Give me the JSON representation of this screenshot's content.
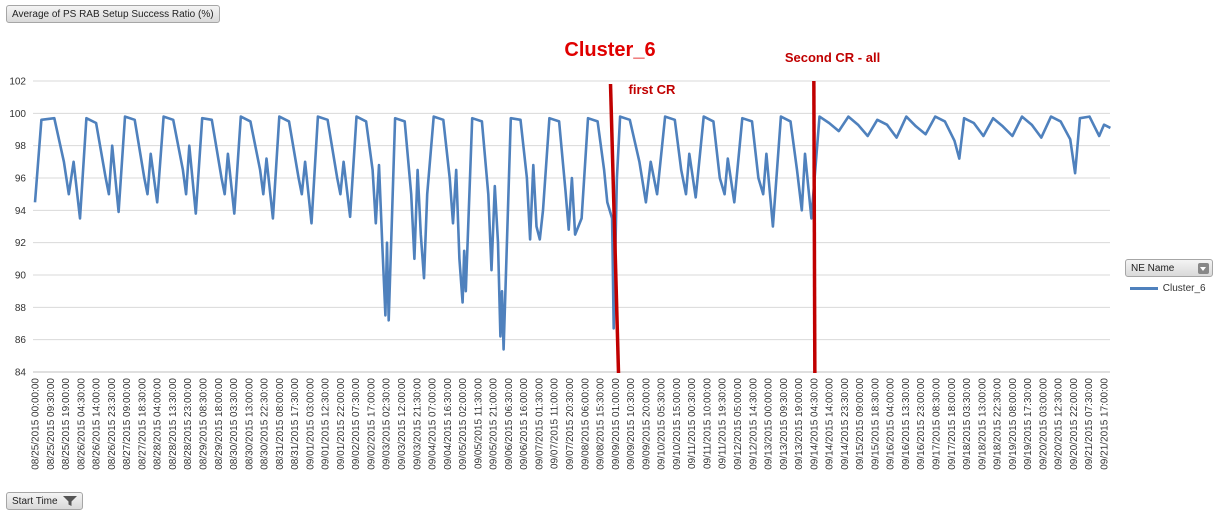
{
  "pivot": {
    "value_field": "Average of PS RAB Setup Success Ratio (%)",
    "axis_field": "Start Time",
    "legend_field": "NE Name"
  },
  "colors": {
    "series": "#4f81bd",
    "marker": "#c00000",
    "grid": "#d9d9d9",
    "title": "#e00000"
  },
  "chart_data": {
    "type": "line",
    "title": "Cluster_6",
    "ylim": [
      84,
      102
    ],
    "yticks": [
      84,
      86,
      88,
      90,
      92,
      94,
      96,
      98,
      100,
      102
    ],
    "grid": true,
    "legend": "right",
    "x_ticks": [
      "08/25/2015 00:00:00",
      "08/25/2015 09:30:00",
      "08/25/2015 19:00:00",
      "08/26/2015 04:30:00",
      "08/26/2015 14:00:00",
      "08/26/2015 23:30:00",
      "08/27/2015 09:00:00",
      "08/27/2015 18:30:00",
      "08/28/2015 04:00:00",
      "08/28/2015 13:30:00",
      "08/28/2015 23:00:00",
      "08/29/2015 08:30:00",
      "08/29/2015 18:00:00",
      "08/30/2015 03:30:00",
      "08/30/2015 13:00:00",
      "08/30/2015 22:30:00",
      "08/31/2015 08:00:00",
      "08/31/2015 17:30:00",
      "09/01/2015 03:00:00",
      "09/01/2015 12:30:00",
      "09/01/2015 22:00:00",
      "09/02/2015 07:30:00",
      "09/02/2015 17:00:00",
      "09/03/2015 02:30:00",
      "09/03/2015 12:00:00",
      "09/03/2015 21:30:00",
      "09/04/2015 07:00:00",
      "09/04/2015 16:30:00",
      "09/05/2015 02:00:00",
      "09/05/2015 11:30:00",
      "09/05/2015 21:00:00",
      "09/06/2015 06:30:00",
      "09/06/2015 16:00:00",
      "09/07/2015 01:30:00",
      "09/07/2015 11:00:00",
      "09/07/2015 20:30:00",
      "09/08/2015 06:00:00",
      "09/08/2015 15:30:00",
      "09/09/2015 01:00:00",
      "09/09/2015 10:30:00",
      "09/09/2015 20:00:00",
      "09/10/2015 05:30:00",
      "09/10/2015 15:00:00",
      "09/11/2015 00:30:00",
      "09/11/2015 10:00:00",
      "09/11/2015 19:30:00",
      "09/12/2015 05:00:00",
      "09/12/2015 14:30:00",
      "09/13/2015 00:00:00",
      "09/13/2015 09:30:00",
      "09/13/2015 19:00:00",
      "09/14/2015 04:30:00",
      "09/14/2015 14:00:00",
      "09/14/2015 23:30:00",
      "09/15/2015 09:00:00",
      "09/15/2015 18:30:00",
      "09/16/2015 04:00:00",
      "09/16/2015 13:30:00",
      "09/16/2015 23:00:00",
      "09/17/2015 08:30:00",
      "09/17/2015 18:00:00",
      "09/18/2015 03:30:00",
      "09/18/2015 13:00:00",
      "09/18/2015 22:30:00",
      "09/19/2015 08:00:00",
      "09/19/2015 17:30:00",
      "09/20/2015 03:00:00",
      "09/20/2015 12:30:00",
      "09/20/2015 22:00:00",
      "09/21/2015 07:30:00",
      "09/21/2015 17:00:00"
    ],
    "series": [
      {
        "name": "Cluster_6",
        "points": [
          [
            "08/25/2015 00:00:00",
            94.5
          ],
          [
            "08/25/2015 04:00:00",
            99.6
          ],
          [
            "08/25/2015 12:00:00",
            99.7
          ],
          [
            "08/25/2015 18:00:00",
            97
          ],
          [
            "08/25/2015 21:00:00",
            95
          ],
          [
            "08/26/2015 00:00:00",
            97
          ],
          [
            "08/26/2015 04:00:00",
            93.5
          ],
          [
            "08/26/2015 08:00:00",
            99.7
          ],
          [
            "08/26/2015 14:00:00",
            99.4
          ],
          [
            "08/26/2015 20:00:00",
            96
          ],
          [
            "08/26/2015 22:00:00",
            95
          ],
          [
            "08/27/2015 00:00:00",
            98
          ],
          [
            "08/27/2015 04:00:00",
            93.9
          ],
          [
            "08/27/2015 08:00:00",
            99.8
          ],
          [
            "08/27/2015 14:00:00",
            99.6
          ],
          [
            "08/27/2015 20:00:00",
            96
          ],
          [
            "08/27/2015 22:00:00",
            95
          ],
          [
            "08/28/2015 00:00:00",
            97.5
          ],
          [
            "08/28/2015 04:00:00",
            94.5
          ],
          [
            "08/28/2015 08:00:00",
            99.8
          ],
          [
            "08/28/2015 14:00:00",
            99.6
          ],
          [
            "08/28/2015 20:00:00",
            96.5
          ],
          [
            "08/28/2015 22:00:00",
            95
          ],
          [
            "08/29/2015 00:00:00",
            98
          ],
          [
            "08/29/2015 04:00:00",
            93.8
          ],
          [
            "08/29/2015 08:00:00",
            99.7
          ],
          [
            "08/29/2015 14:00:00",
            99.6
          ],
          [
            "08/29/2015 20:00:00",
            96
          ],
          [
            "08/29/2015 22:00:00",
            95
          ],
          [
            "08/30/2015 00:00:00",
            97.5
          ],
          [
            "08/30/2015 04:00:00",
            93.8
          ],
          [
            "08/30/2015 08:00:00",
            99.8
          ],
          [
            "08/30/2015 14:00:00",
            99.5
          ],
          [
            "08/30/2015 20:00:00",
            96.5
          ],
          [
            "08/30/2015 22:00:00",
            95
          ],
          [
            "08/31/2015 00:00:00",
            97.2
          ],
          [
            "08/31/2015 04:00:00",
            93.5
          ],
          [
            "08/31/2015 08:00:00",
            99.8
          ],
          [
            "08/31/2015 14:00:00",
            99.5
          ],
          [
            "08/31/2015 20:00:00",
            96
          ],
          [
            "08/31/2015 22:00:00",
            95
          ],
          [
            "09/01/2015 00:00:00",
            97
          ],
          [
            "09/01/2015 04:00:00",
            93.2
          ],
          [
            "09/01/2015 08:00:00",
            99.8
          ],
          [
            "09/01/2015 14:00:00",
            99.6
          ],
          [
            "09/01/2015 20:00:00",
            96
          ],
          [
            "09/01/2015 22:00:00",
            95
          ],
          [
            "09/02/2015 00:00:00",
            97
          ],
          [
            "09/02/2015 04:00:00",
            93.6
          ],
          [
            "09/02/2015 08:00:00",
            99.8
          ],
          [
            "09/02/2015 14:00:00",
            99.5
          ],
          [
            "09/02/2015 18:00:00",
            96.5
          ],
          [
            "09/02/2015 20:00:00",
            93.2
          ],
          [
            "09/02/2015 22:00:00",
            96.8
          ],
          [
            "09/03/2015 00:00:00",
            92
          ],
          [
            "09/03/2015 02:00:00",
            87.5
          ],
          [
            "09/03/2015 03:00:00",
            92
          ],
          [
            "09/03/2015 04:00:00",
            87.2
          ],
          [
            "09/03/2015 08:00:00",
            99.7
          ],
          [
            "09/03/2015 14:00:00",
            99.5
          ],
          [
            "09/03/2015 18:00:00",
            95
          ],
          [
            "09/03/2015 20:00:00",
            91
          ],
          [
            "09/03/2015 22:00:00",
            96.5
          ],
          [
            "09/04/2015 00:00:00",
            92.5
          ],
          [
            "09/04/2015 02:00:00",
            89.8
          ],
          [
            "09/04/2015 04:00:00",
            95
          ],
          [
            "09/04/2015 08:00:00",
            99.8
          ],
          [
            "09/04/2015 14:00:00",
            99.6
          ],
          [
            "09/04/2015 18:00:00",
            96
          ],
          [
            "09/04/2015 20:00:00",
            93.2
          ],
          [
            "09/04/2015 22:00:00",
            96.5
          ],
          [
            "09/05/2015 00:00:00",
            91
          ],
          [
            "09/05/2015 02:00:00",
            88.3
          ],
          [
            "09/05/2015 03:00:00",
            91.5
          ],
          [
            "09/05/2015 04:00:00",
            89
          ],
          [
            "09/05/2015 08:00:00",
            99.7
          ],
          [
            "09/05/2015 14:00:00",
            99.5
          ],
          [
            "09/05/2015 18:00:00",
            95
          ],
          [
            "09/05/2015 20:00:00",
            90.3
          ],
          [
            "09/05/2015 22:00:00",
            95.5
          ],
          [
            "09/06/2015 00:00:00",
            92
          ],
          [
            "09/06/2015 01:30:00",
            86.2
          ],
          [
            "09/06/2015 02:30:00",
            89
          ],
          [
            "09/06/2015 03:30:00",
            85.4
          ],
          [
            "09/06/2015 08:00:00",
            99.7
          ],
          [
            "09/06/2015 14:00:00",
            99.6
          ],
          [
            "09/06/2015 18:00:00",
            96
          ],
          [
            "09/06/2015 20:00:00",
            92.2
          ],
          [
            "09/06/2015 22:00:00",
            96.8
          ],
          [
            "09/07/2015 00:00:00",
            93
          ],
          [
            "09/07/2015 02:00:00",
            92.2
          ],
          [
            "09/07/2015 04:00:00",
            94
          ],
          [
            "09/07/2015 08:00:00",
            99.7
          ],
          [
            "09/07/2015 14:00:00",
            99.5
          ],
          [
            "09/07/2015 18:00:00",
            95.2
          ],
          [
            "09/07/2015 20:00:00",
            92.8
          ],
          [
            "09/07/2015 22:00:00",
            96
          ],
          [
            "09/08/2015 00:00:00",
            92.5
          ],
          [
            "09/08/2015 04:00:00",
            93.5
          ],
          [
            "09/08/2015 08:00:00",
            99.7
          ],
          [
            "09/08/2015 14:00:00",
            99.5
          ],
          [
            "09/08/2015 18:00:00",
            96.5
          ],
          [
            "09/08/2015 20:00:00",
            94.5
          ],
          [
            "09/08/2015 23:00:00",
            93.5
          ],
          [
            "09/09/2015 00:00:00",
            86.7
          ],
          [
            "09/09/2015 02:00:00",
            96
          ],
          [
            "09/09/2015 04:00:00",
            99.8
          ],
          [
            "09/09/2015 10:00:00",
            99.6
          ],
          [
            "09/09/2015 16:00:00",
            97
          ],
          [
            "09/09/2015 20:00:00",
            94.5
          ],
          [
            "09/09/2015 23:00:00",
            97
          ],
          [
            "09/10/2015 03:00:00",
            95
          ],
          [
            "09/10/2015 08:00:00",
            99.8
          ],
          [
            "09/10/2015 14:00:00",
            99.6
          ],
          [
            "09/10/2015 18:00:00",
            96.5
          ],
          [
            "09/10/2015 21:00:00",
            95
          ],
          [
            "09/10/2015 23:00:00",
            97.5
          ],
          [
            "09/11/2015 03:00:00",
            94.8
          ],
          [
            "09/11/2015 08:00:00",
            99.8
          ],
          [
            "09/11/2015 14:00:00",
            99.5
          ],
          [
            "09/11/2015 18:00:00",
            96
          ],
          [
            "09/11/2015 21:00:00",
            95
          ],
          [
            "09/11/2015 23:00:00",
            97.2
          ],
          [
            "09/12/2015 03:00:00",
            94.5
          ],
          [
            "09/12/2015 08:00:00",
            99.7
          ],
          [
            "09/12/2015 14:00:00",
            99.5
          ],
          [
            "09/12/2015 18:00:00",
            96
          ],
          [
            "09/12/2015 21:00:00",
            95
          ],
          [
            "09/12/2015 23:00:00",
            97.5
          ],
          [
            "09/13/2015 03:00:00",
            93
          ],
          [
            "09/13/2015 08:00:00",
            99.8
          ],
          [
            "09/13/2015 14:00:00",
            99.5
          ],
          [
            "09/13/2015 18:00:00",
            96.5
          ],
          [
            "09/13/2015 21:00:00",
            94
          ],
          [
            "09/13/2015 23:00:00",
            97.5
          ],
          [
            "09/14/2015 03:00:00",
            93.5
          ],
          [
            "09/14/2015 08:00:00",
            99.8
          ],
          [
            "09/14/2015 14:00:00",
            99.4
          ],
          [
            "09/14/2015 20:00:00",
            98.9
          ],
          [
            "09/15/2015 02:00:00",
            99.8
          ],
          [
            "09/15/2015 08:00:00",
            99.3
          ],
          [
            "09/15/2015 14:00:00",
            98.6
          ],
          [
            "09/15/2015 20:00:00",
            99.6
          ],
          [
            "09/16/2015 02:00:00",
            99.3
          ],
          [
            "09/16/2015 08:00:00",
            98.5
          ],
          [
            "09/16/2015 14:00:00",
            99.8
          ],
          [
            "09/16/2015 20:00:00",
            99.2
          ],
          [
            "09/17/2015 02:00:00",
            98.7
          ],
          [
            "09/17/2015 08:00:00",
            99.8
          ],
          [
            "09/17/2015 14:00:00",
            99.5
          ],
          [
            "09/17/2015 20:00:00",
            98.3
          ],
          [
            "09/17/2015 23:00:00",
            97.2
          ],
          [
            "09/18/2015 02:00:00",
            99.7
          ],
          [
            "09/18/2015 08:00:00",
            99.4
          ],
          [
            "09/18/2015 14:00:00",
            98.6
          ],
          [
            "09/18/2015 20:00:00",
            99.7
          ],
          [
            "09/19/2015 02:00:00",
            99.2
          ],
          [
            "09/19/2015 08:00:00",
            98.6
          ],
          [
            "09/19/2015 14:00:00",
            99.8
          ],
          [
            "09/19/2015 20:00:00",
            99.3
          ],
          [
            "09/20/2015 02:00:00",
            98.5
          ],
          [
            "09/20/2015 08:00:00",
            99.8
          ],
          [
            "09/20/2015 14:00:00",
            99.5
          ],
          [
            "09/20/2015 20:00:00",
            98.4
          ],
          [
            "09/20/2015 23:00:00",
            96.3
          ],
          [
            "09/21/2015 02:00:00",
            99.7
          ],
          [
            "09/21/2015 08:00:00",
            99.8
          ],
          [
            "09/21/2015 14:00:00",
            98.6
          ],
          [
            "09/21/2015 17:00:00",
            99.3
          ],
          [
            "09/21/2015 21:00:00",
            99.1
          ]
        ]
      }
    ],
    "annotations": [
      {
        "label": "first CR",
        "x": "09/09/2015 00:30:00"
      },
      {
        "label": "Second CR  - all",
        "x": "09/14/2015 04:30:00"
      }
    ]
  }
}
